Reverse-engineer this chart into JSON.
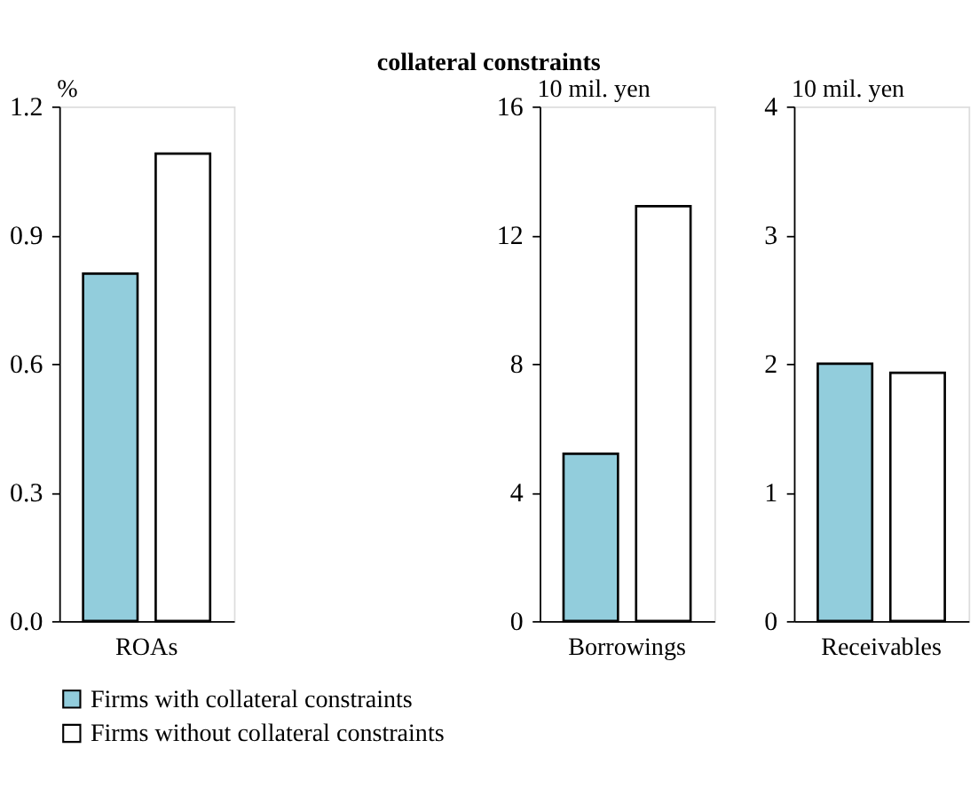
{
  "chart_data": [
    {
      "type": "bar",
      "ylabel": "%",
      "categories": [
        "ROAs"
      ],
      "ylim": [
        0,
        1.2
      ],
      "yticks": [
        {
          "value": 0,
          "label": "0.0"
        },
        0.3,
        0.6,
        0.9,
        1.2
      ],
      "grid": false,
      "legend": "bottom",
      "series": [
        {
          "name": "Firms with collateral constraints",
          "color": "#92cddc",
          "values": [
            0.81
          ]
        },
        {
          "name": "Firms without collateral constraints",
          "color": "#ffffff",
          "values": [
            1.09
          ]
        }
      ]
    },
    {
      "type": "bar",
      "title": "collateral constraints",
      "ylabel": "10 mil. yen",
      "categories": [
        "Borrowings"
      ],
      "ylim": [
        0,
        16
      ],
      "yticks": [
        0,
        4,
        8,
        12,
        16
      ],
      "grid": false,
      "series": [
        {
          "color": "#92cddc",
          "values": [
            5.2
          ]
        },
        {
          "color": "#ffffff",
          "values": [
            12.9
          ]
        }
      ]
    },
    {
      "type": "bar",
      "ylabel": "10 mil. yen",
      "categories": [
        "Receivables"
      ],
      "ylim": [
        0,
        4
      ],
      "yticks": [
        0,
        1,
        2,
        3,
        4
      ],
      "grid": false,
      "series": [
        {
          "color": "#92cddc",
          "values": [
            2.0
          ]
        },
        {
          "color": "#ffffff",
          "values": [
            1.93
          ]
        }
      ]
    }
  ]
}
